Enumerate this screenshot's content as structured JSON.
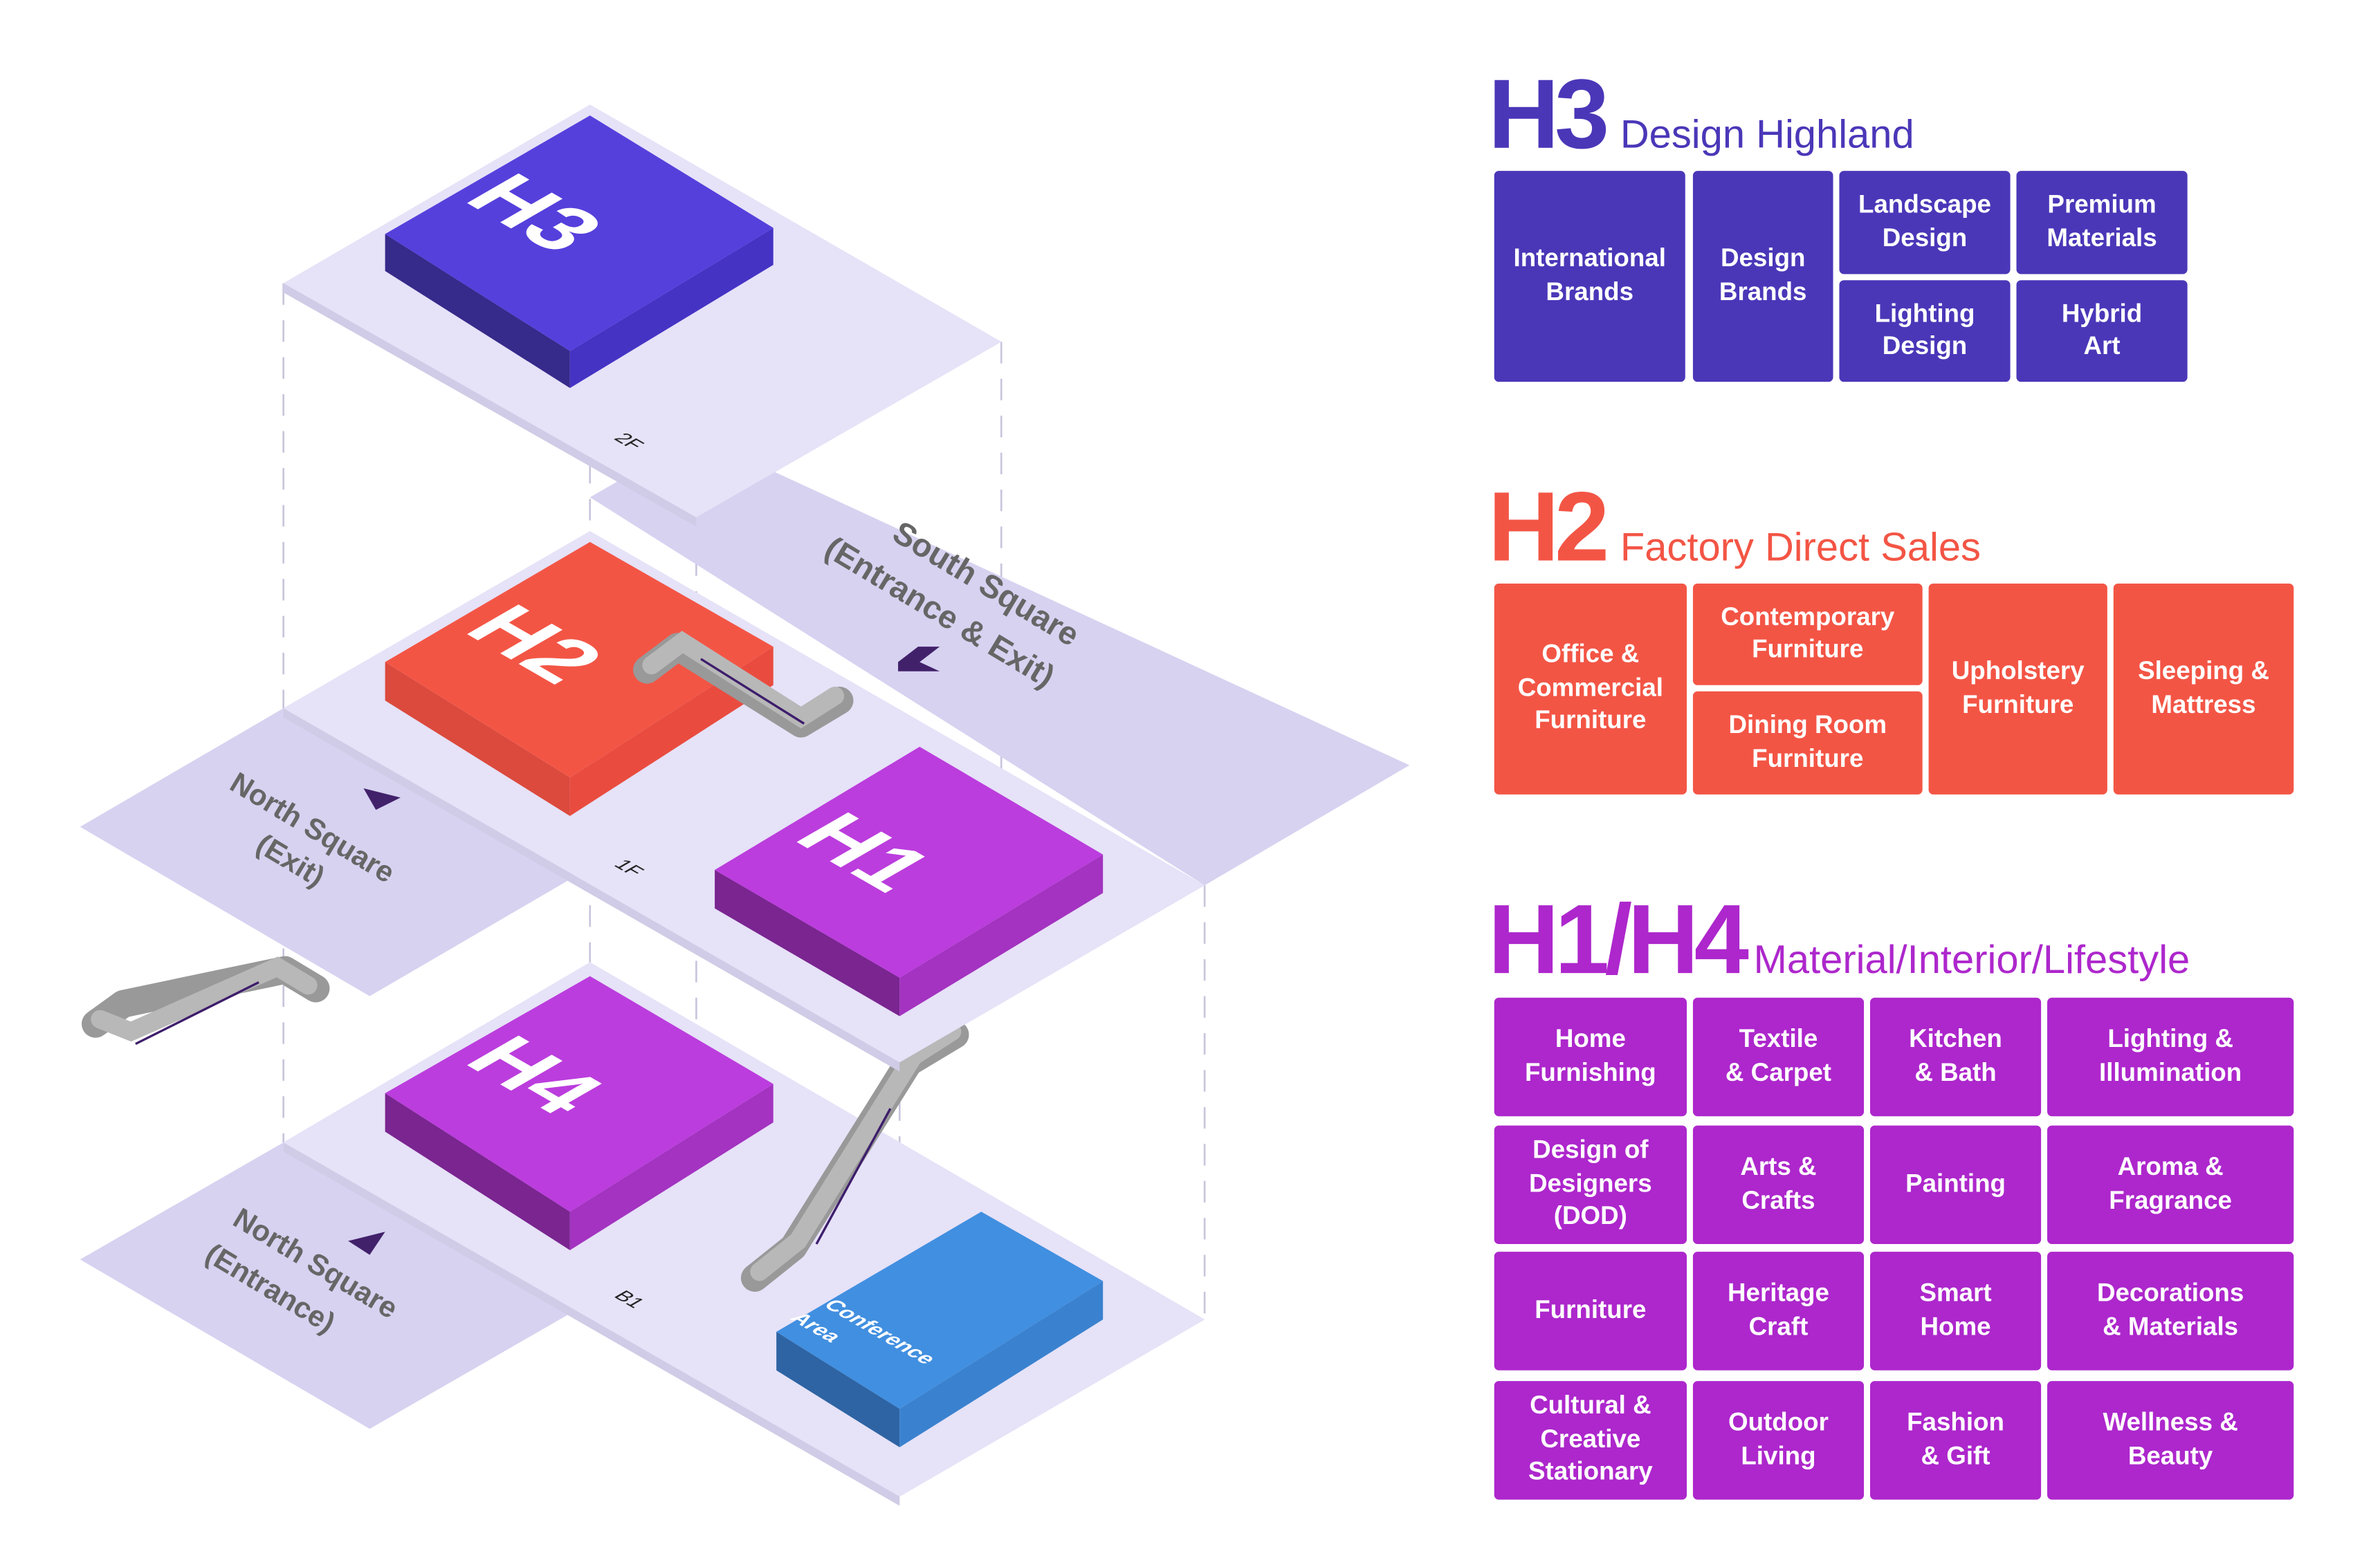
{
  "colors": {
    "h3": "#4a37b8",
    "h2": "#f35545",
    "h1h4": "#ad27cc",
    "conference": "#418fe0",
    "plate": "#e6e2f8",
    "square": "#d6d2f0",
    "escalator": "#b5b5b5",
    "arrow": "#3d1d6b"
  },
  "map": {
    "floors": {
      "f2": "2F",
      "f1": "1F",
      "b1": "B1"
    },
    "halls": {
      "h3": "H3",
      "h2": "H2",
      "h1": "H1",
      "h4": "H4",
      "conference": "Conference\nArea",
      "conference_l1": "Conference",
      "conference_l2": "Area"
    },
    "areas": {
      "south_l1": "South Square",
      "south_l2": "(Entrance & Exit)",
      "north_exit_l1": "North Square",
      "north_exit_l2": "(Exit)",
      "north_entrance_l1": "North Square",
      "north_entrance_l2": "(Entrance)"
    }
  },
  "legend": {
    "h3": {
      "code": "H3",
      "name": "Design Highland",
      "items": [
        "International\nBrands",
        "Design\nBrands",
        "Landscape\nDesign",
        "Premium\nMaterials",
        "Lighting\nDesign",
        "Hybrid\nArt"
      ]
    },
    "h2": {
      "code": "H2",
      "name": "Factory Direct Sales",
      "items": [
        "Office &\nCommercial\nFurniture",
        "Contemporary\nFurniture",
        "Dining Room\nFurniture",
        "Upholstery\nFurniture",
        "Sleeping &\nMattress"
      ]
    },
    "h1h4": {
      "code": "H1/H4",
      "name": "Material/Interior/Lifestyle",
      "items": [
        "Home\nFurnishing",
        "Textile\n& Carpet",
        "Kitchen\n& Bath",
        "Lighting &\nIllumination",
        "Design of\nDesigners\n(DOD)",
        "Arts &\nCrafts",
        "Painting",
        "Aroma &\nFragrance",
        "Furniture",
        "Heritage\nCraft",
        "Smart\nHome",
        "Decorations\n& Materials",
        "Cultural &\nCreative\nStationary",
        "Outdoor\nLiving",
        "Fashion\n& Gift",
        "Wellness &\nBeauty"
      ]
    }
  }
}
